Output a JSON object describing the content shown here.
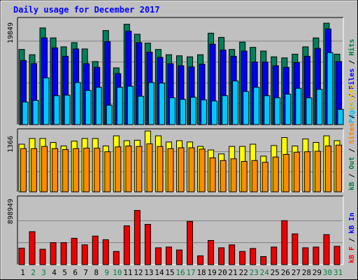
{
  "chart_data": {
    "type": "bar",
    "title": "Daily usage for December 2017",
    "days": [
      "1",
      "2",
      "3",
      "4",
      "5",
      "6",
      "7",
      "8",
      "9",
      "10",
      "11",
      "12",
      "13",
      "14",
      "15",
      "16",
      "17",
      "18",
      "19",
      "20",
      "21",
      "22",
      "23",
      "24",
      "25",
      "26",
      "27",
      "28",
      "29",
      "30",
      "31"
    ],
    "weekend_days": [
      "2",
      "3",
      "9",
      "10",
      "16",
      "17",
      "23",
      "24",
      "30",
      "31"
    ],
    "panels": [
      {
        "ylabel": "19849",
        "ymax": 19849,
        "legend": [
          {
            "label": "Hits",
            "color": "#008040"
          },
          {
            "label": "Files",
            "color": "#0000ff"
          },
          {
            "label": "Pages",
            "color": "#00c0ff"
          }
        ],
        "series": [
          {
            "name": "Hits",
            "color": "#00805c",
            "values": [
              14300,
              13300,
              18400,
              16500,
              14800,
              15600,
              14400,
              12000,
              17900,
              10800,
              19100,
              17200,
              15500,
              14300,
              13300,
              13100,
              12900,
              13300,
              17400,
              16600,
              14300,
              15700,
              14700,
              14000,
              12900,
              12700,
              13400,
              14800,
              16500,
              19300,
              13400
            ]
          },
          {
            "name": "Files",
            "color": "#0000ee",
            "values": [
              12200,
              11600,
              16500,
              14600,
              13000,
              14400,
              11600,
              10900,
              15800,
              9700,
              17800,
              15600,
              13800,
              12800,
              11600,
              11200,
              11000,
              11500,
              15300,
              14200,
              13000,
              14000,
              11900,
              11900,
              11200,
              10900,
              11800,
              13000,
              14500,
              18200,
              12000
            ]
          },
          {
            "name": "Pages",
            "color": "#00c8ff",
            "values": [
              4300,
              4600,
              8900,
              5500,
              5600,
              8000,
              6500,
              7100,
              3700,
              7100,
              7300,
              5400,
              8000,
              7900,
              5100,
              4800,
              5200,
              4700,
              4500,
              5500,
              8300,
              6300,
              7100,
              5500,
              5100,
              5800,
              6900,
              5100,
              6700,
              13700,
              2900
            ]
          }
        ]
      },
      {
        "ylabel": "1366",
        "ymax": 1366,
        "legend": [
          {
            "label": "Visits",
            "color": "#ffc000"
          },
          {
            "label": "Sites",
            "color": "#ff8000"
          },
          {
            "label": "Out",
            "color": "#008040"
          },
          {
            "label": "kB",
            "color": "#008040"
          }
        ],
        "series": [
          {
            "name": "Visits",
            "color": "#ffff00",
            "values": [
              1080,
              1210,
              1210,
              1120,
              1040,
              1150,
              1210,
              1210,
              1040,
              1270,
              1160,
              1170,
              1380,
              1270,
              1130,
              1160,
              1130,
              1030,
              950,
              860,
              1030,
              1030,
              1080,
              810,
              1050,
              1230,
              1040,
              1200,
              1120,
              1270,
              1160
            ]
          },
          {
            "name": "Sites",
            "color": "#ff8c00",
            "values": [
              980,
              980,
              1030,
              980,
              960,
              980,
              990,
              990,
              910,
              1020,
              1040,
              1030,
              1090,
              1030,
              980,
              1000,
              1000,
              970,
              770,
              710,
              750,
              690,
              710,
              670,
              790,
              850,
              900,
              910,
              920,
              1040,
              1060
            ]
          }
        ]
      },
      {
        "ylabel": "898949",
        "ymax": 898949,
        "legend": [
          {
            "label": "kB In",
            "color": "#0000ff"
          },
          {
            "label": "kB F",
            "color": "#ff0000"
          }
        ],
        "series": [
          {
            "name": "kB F",
            "color": "#ee0000",
            "values": [
              225000,
              450000,
              210000,
              300000,
              300000,
              360000,
              270000,
              390000,
              340000,
              180000,
              530000,
              740000,
              550000,
              230000,
              240000,
              200000,
              590000,
              120000,
              330000,
              230000,
              270000,
              180000,
              220000,
              110000,
              240000,
              600000,
              420000,
              230000,
              240000,
              410000,
              250000
            ]
          }
        ]
      }
    ]
  }
}
